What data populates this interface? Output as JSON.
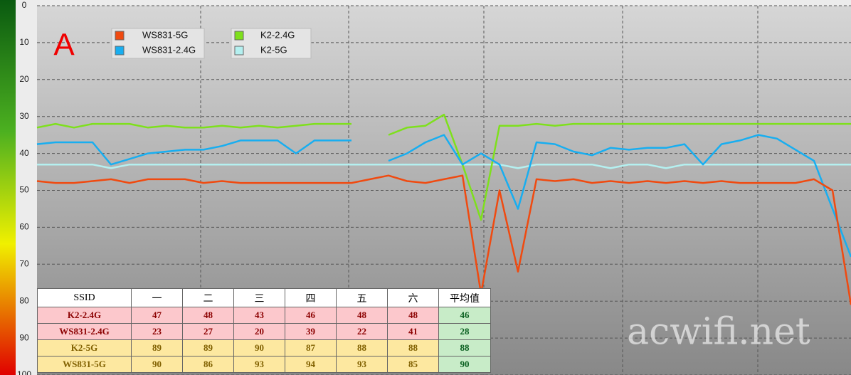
{
  "chart_data": {
    "type": "line",
    "annotation": "A",
    "watermark": "acwifi.net",
    "ylim": [
      0,
      100
    ],
    "y_reversed": true,
    "yticks": [
      0,
      10,
      20,
      30,
      40,
      50,
      60,
      70,
      80,
      90,
      100
    ],
    "grid": true,
    "series": [
      {
        "name": "WS831-5G",
        "color": "#f04a10",
        "values": [
          47.5,
          48,
          48,
          47.5,
          47,
          48,
          47,
          47,
          47,
          48,
          47.5,
          48,
          48,
          48,
          48,
          48,
          48,
          48,
          47,
          46,
          47.5,
          48,
          47,
          46,
          78,
          50,
          72,
          47,
          47.5,
          47,
          48,
          47.5,
          48,
          47.5,
          48,
          47.5,
          48,
          47.5,
          48,
          48,
          48,
          48,
          47,
          50,
          81
        ]
      },
      {
        "name": "WS831-2.4G",
        "color": "#18aef0",
        "values": [
          37.5,
          37,
          37,
          37,
          43,
          41.5,
          40,
          39.5,
          39,
          39,
          38,
          36.5,
          36.5,
          36.5,
          40,
          36.5,
          36.5,
          36.5,
          null,
          42,
          40,
          37,
          35,
          43,
          40,
          43,
          55,
          37,
          37.5,
          39.5,
          40.5,
          38.5,
          39,
          38.5,
          38.5,
          37.5,
          43,
          37.5,
          36.5,
          35,
          36,
          39,
          42,
          55,
          68
        ]
      },
      {
        "name": "K2-2.4G",
        "color": "#7ee01c",
        "values": [
          33,
          32,
          33,
          32,
          32,
          32,
          33,
          32.5,
          33,
          33,
          32.5,
          33,
          32.5,
          33,
          32.5,
          32,
          32,
          32,
          null,
          35,
          33,
          32.5,
          29.5,
          43,
          58,
          32.5,
          32.5,
          32,
          32.5,
          32,
          32,
          32,
          32,
          32,
          32,
          32,
          32,
          32,
          32,
          32,
          32,
          32,
          32,
          32,
          32
        ]
      },
      {
        "name": "K2-5G",
        "color": "#b4f0f0",
        "values": [
          43,
          43,
          43,
          43,
          44,
          43,
          43,
          43,
          43,
          43,
          43,
          43,
          43,
          43,
          43,
          43,
          43,
          43,
          43,
          43,
          43,
          43,
          43,
          43,
          43,
          43,
          44,
          43,
          43,
          43,
          43,
          44,
          43,
          43,
          44,
          43,
          43,
          43,
          43,
          43,
          43,
          43,
          43,
          43,
          43
        ]
      }
    ]
  },
  "table": {
    "header": [
      "SSID",
      "一",
      "二",
      "三",
      "四",
      "五",
      "六",
      "平均值"
    ],
    "rows": [
      [
        "K2-2.4G",
        "47",
        "48",
        "43",
        "46",
        "48",
        "48",
        "46"
      ],
      [
        "WS831-2.4G",
        "23",
        "27",
        "20",
        "39",
        "22",
        "41",
        "28"
      ],
      [
        "K2-5G",
        "89",
        "89",
        "90",
        "87",
        "88",
        "88",
        "88"
      ],
      [
        "WS831-5G",
        "90",
        "86",
        "93",
        "94",
        "93",
        "85",
        "90"
      ]
    ]
  }
}
